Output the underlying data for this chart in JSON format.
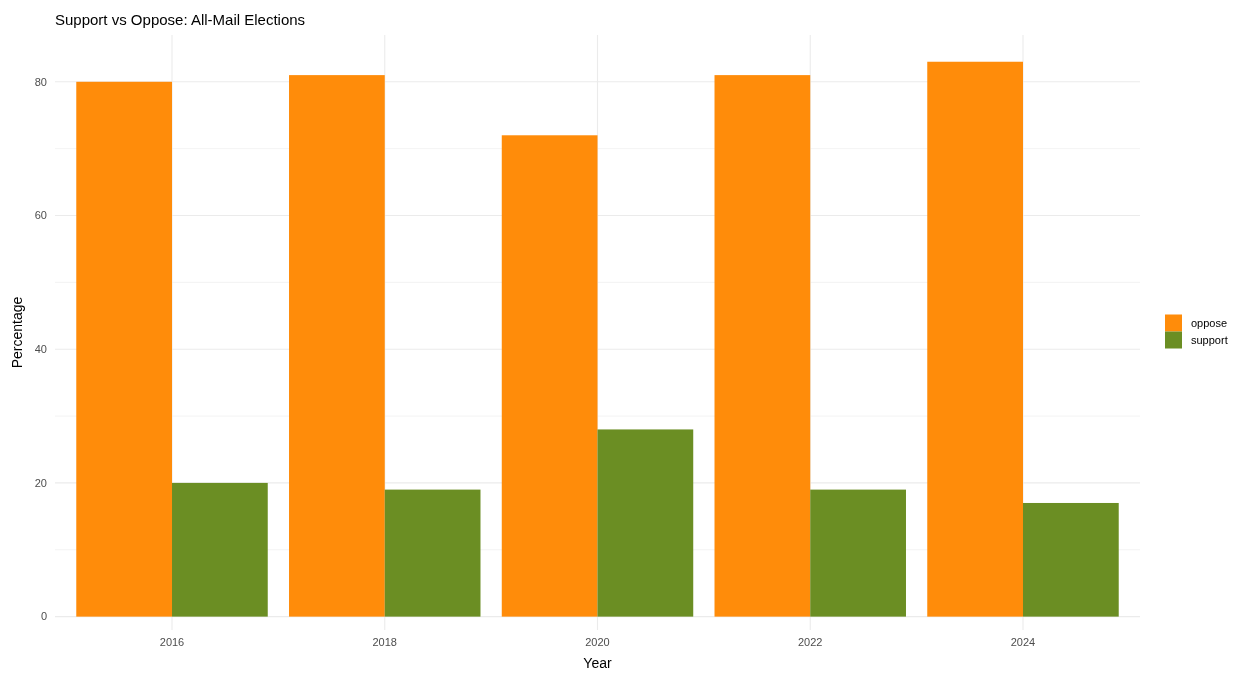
{
  "chart_data": {
    "type": "bar",
    "title": "Support vs Oppose: All-Mail Elections",
    "xlabel": "Year",
    "ylabel": "Percentage",
    "categories": [
      "2016",
      "2018",
      "2020",
      "2022",
      "2024"
    ],
    "series": [
      {
        "name": "oppose",
        "color": "#ff8c0a",
        "values": [
          80,
          81,
          72,
          81,
          83
        ]
      },
      {
        "name": "support",
        "color": "#6b8e23",
        "values": [
          20,
          19,
          28,
          19,
          17
        ]
      }
    ],
    "ylim": [
      -2,
      87
    ],
    "yticks": [
      0,
      {
        "value": 10,
        "label": null
      },
      20,
      {
        "value": 30,
        "label": null
      },
      40,
      {
        "value": 50,
        "label": null
      },
      60,
      {
        "value": 70,
        "label": null
      },
      80
    ],
    "grid": true,
    "legend": "right"
  }
}
